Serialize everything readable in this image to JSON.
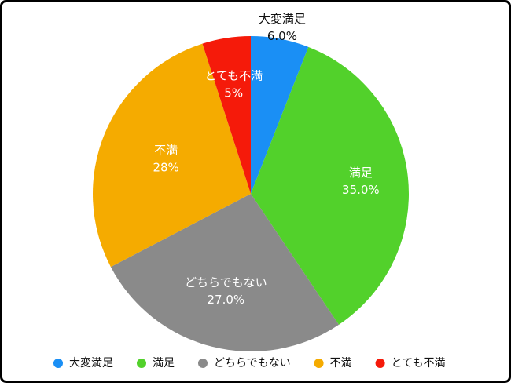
{
  "chart_data": {
    "type": "pie",
    "categories": [
      "大変満足",
      "満足",
      "どちらでもない",
      "不満",
      "とても不満"
    ],
    "values": [
      6,
      35,
      27,
      28,
      5
    ],
    "value_labels": [
      "6.0%",
      "35.0%",
      "27.0%",
      "28%",
      "5%"
    ],
    "colors": [
      "#1a8ff5",
      "#52d12b",
      "#8a8a8a",
      "#f5ab00",
      "#f51a0a"
    ],
    "legend": "bottom"
  }
}
